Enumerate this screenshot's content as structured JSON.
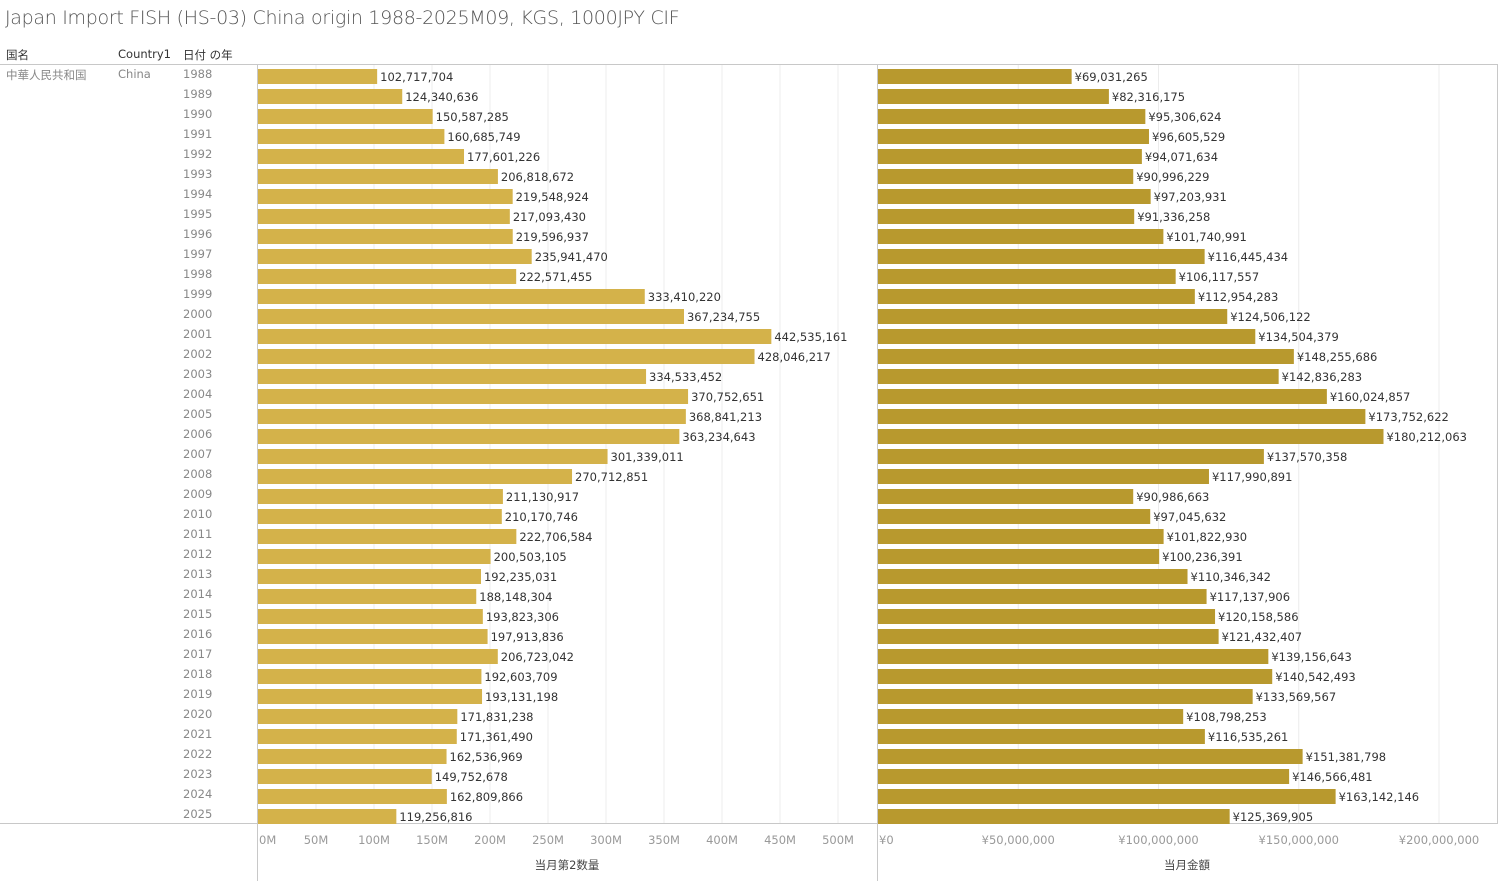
{
  "title": "Japan Import FISH (HS-03) China origin 1988-2025M09, KGS, 1000JPY CIF",
  "headers": {
    "country_jp": "国名",
    "country1": "Country1",
    "year": "日付 の年"
  },
  "row_dims": {
    "country_jp": "中華人民共和国",
    "country1": "China"
  },
  "colors": {
    "qty_bar": "#d4b24a",
    "value_bar": "#b8992e",
    "grid": "#ececec",
    "border": "#c8c8c8"
  },
  "chart_data": [
    {
      "type": "bar",
      "orientation": "horizontal",
      "title": "",
      "xlabel": "当月第2数量",
      "ylabel": "日付 の年",
      "xlim": [
        0,
        520000000
      ],
      "xticks": [
        0,
        50000000,
        100000000,
        150000000,
        200000000,
        250000000,
        300000000,
        350000000,
        400000000,
        450000000,
        500000000
      ],
      "xtick_labels": [
        "0M",
        "50M",
        "100M",
        "150M",
        "200M",
        "250M",
        "300M",
        "350M",
        "400M",
        "450M",
        "500M"
      ],
      "grid": true,
      "categories": [
        "1988",
        "1989",
        "1990",
        "1991",
        "1992",
        "1993",
        "1994",
        "1995",
        "1996",
        "1997",
        "1998",
        "1999",
        "2000",
        "2001",
        "2002",
        "2003",
        "2004",
        "2005",
        "2006",
        "2007",
        "2008",
        "2009",
        "2010",
        "2011",
        "2012",
        "2013",
        "2014",
        "2015",
        "2016",
        "2017",
        "2018",
        "2019",
        "2020",
        "2021",
        "2022",
        "2023",
        "2024",
        "2025"
      ],
      "values": [
        102717704,
        124340636,
        150587285,
        160685749,
        177601226,
        206818672,
        219548924,
        217093430,
        219596937,
        235941470,
        222571455,
        333410220,
        367234755,
        442535161,
        428046217,
        334533452,
        370752651,
        368841213,
        363234643,
        301339011,
        270712851,
        211130917,
        210170746,
        222706584,
        200503105,
        192235031,
        188148304,
        193823306,
        197913836,
        206723042,
        192603709,
        193131198,
        171831238,
        171361490,
        162536969,
        149752678,
        162809866,
        119256816
      ],
      "value_labels": [
        "102,717,704",
        "124,340,636",
        "150,587,285",
        "160,685,749",
        "177,601,226",
        "206,818,672",
        "219,548,924",
        "217,093,430",
        "219,596,937",
        "235,941,470",
        "222,571,455",
        "333,410,220",
        "367,234,755",
        "442,535,161",
        "428,046,217",
        "334,533,452",
        "370,752,651",
        "368,841,213",
        "363,234,643",
        "301,339,011",
        "270,712,851",
        "211,130,917",
        "210,170,746",
        "222,706,584",
        "200,503,105",
        "192,235,031",
        "188,148,304",
        "193,823,306",
        "197,913,836",
        "206,723,042",
        "192,603,709",
        "193,131,198",
        "171,831,238",
        "171,361,490",
        "162,536,969",
        "149,752,678",
        "162,809,866",
        "119,256,816"
      ]
    },
    {
      "type": "bar",
      "orientation": "horizontal",
      "title": "",
      "xlabel": "当月金額",
      "ylabel": "日付 の年",
      "xlim": [
        0,
        220000000
      ],
      "xticks": [
        0,
        50000000,
        100000000,
        150000000,
        200000000
      ],
      "xtick_labels": [
        "¥0",
        "¥50,000,000",
        "¥100,000,000",
        "¥150,000,000",
        "¥200,000,000"
      ],
      "grid": true,
      "categories": [
        "1988",
        "1989",
        "1990",
        "1991",
        "1992",
        "1993",
        "1994",
        "1995",
        "1996",
        "1997",
        "1998",
        "1999",
        "2000",
        "2001",
        "2002",
        "2003",
        "2004",
        "2005",
        "2006",
        "2007",
        "2008",
        "2009",
        "2010",
        "2011",
        "2012",
        "2013",
        "2014",
        "2015",
        "2016",
        "2017",
        "2018",
        "2019",
        "2020",
        "2021",
        "2022",
        "2023",
        "2024",
        "2025"
      ],
      "values": [
        69031265,
        82316175,
        95306624,
        96605529,
        94071634,
        90996229,
        97203931,
        91336258,
        101740991,
        116445434,
        106117557,
        112954283,
        124506122,
        134504379,
        148255686,
        142836283,
        160024857,
        173752622,
        180212063,
        137570358,
        117990891,
        90986663,
        97045632,
        101822930,
        100236391,
        110346342,
        117137906,
        120158586,
        121432407,
        139156643,
        140542493,
        133569567,
        108798253,
        116535261,
        151381798,
        146566481,
        163142146,
        125369905
      ],
      "value_labels": [
        "¥69,031,265",
        "¥82,316,175",
        "¥95,306,624",
        "¥96,605,529",
        "¥94,071,634",
        "¥90,996,229",
        "¥97,203,931",
        "¥91,336,258",
        "¥101,740,991",
        "¥116,445,434",
        "¥106,117,557",
        "¥112,954,283",
        "¥124,506,122",
        "¥134,504,379",
        "¥148,255,686",
        "¥142,836,283",
        "¥160,024,857",
        "¥173,752,622",
        "¥180,212,063",
        "¥137,570,358",
        "¥117,990,891",
        "¥90,986,663",
        "¥97,045,632",
        "¥101,822,930",
        "¥100,236,391",
        "¥110,346,342",
        "¥117,137,906",
        "¥120,158,586",
        "¥121,432,407",
        "¥139,156,643",
        "¥140,542,493",
        "¥133,569,567",
        "¥108,798,253",
        "¥116,535,261",
        "¥151,381,798",
        "¥146,566,481",
        "¥163,142,146",
        "¥125,369,905"
      ]
    }
  ]
}
